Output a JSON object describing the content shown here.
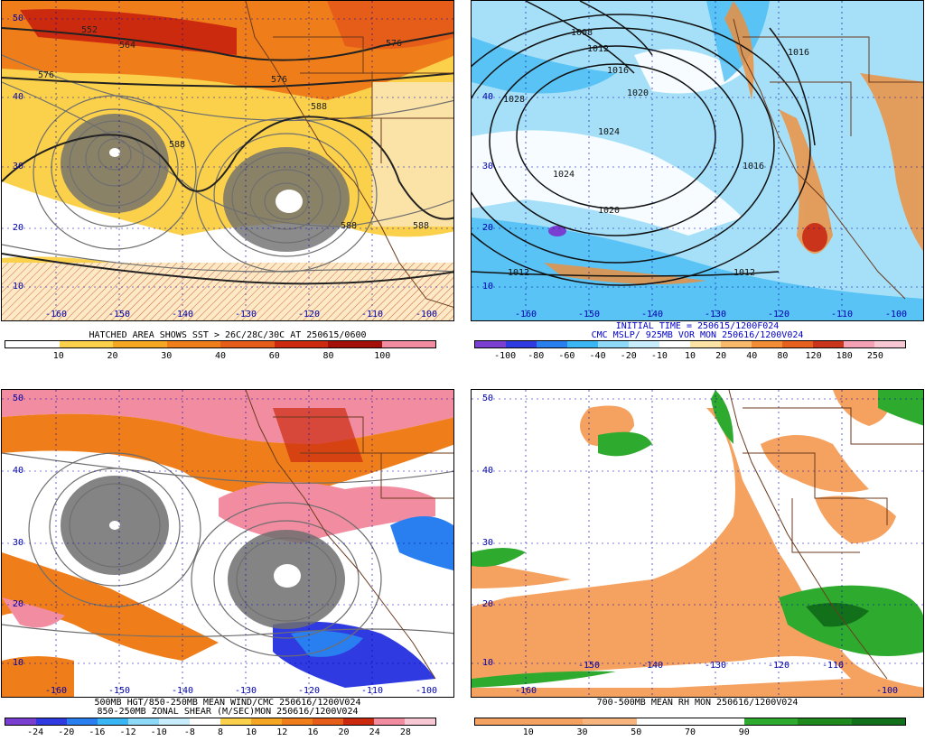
{
  "panels": {
    "tl": {
      "caption1": "HATCHED AREA SHOWS SST > 26C/28C/30C AT 250615/0600",
      "colorbar": {
        "labels": [
          "10",
          "20",
          "30",
          "40",
          "60",
          "80",
          "100"
        ],
        "colors": [
          "#ffffff",
          "#fbd14b",
          "#f5a623",
          "#ef7e1a",
          "#e65c19",
          "#cc2a0e",
          "#a3100a",
          "#f28ca0"
        ]
      },
      "lat_labels": [
        "50",
        "40",
        "30",
        "20",
        "10"
      ],
      "lon_labels": [
        "-160",
        "-150",
        "-140",
        "-130",
        "-120",
        "-110",
        "-100"
      ],
      "contour_labels": [
        "552",
        "564",
        "576",
        "576",
        "576",
        "588",
        "588",
        "588",
        "588"
      ]
    },
    "tr": {
      "caption1": "INITIAL TIME = 250615/1200F024",
      "caption2": "CMC MSLP/ 925MB VOR MON 250616/1200V024",
      "colorbar": {
        "labels": [
          "-100",
          "-80",
          "-60",
          "-40",
          "-20",
          "-10",
          "10",
          "20",
          "40",
          "80",
          "120",
          "180",
          "250"
        ],
        "colors": [
          "#7a3fd1",
          "#2f3be0",
          "#2a7ff0",
          "#39b6f3",
          "#8ed9f7",
          "#c7ecfb",
          "#ffffff",
          "#fde2a6",
          "#f8b96a",
          "#f28d36",
          "#e8601d",
          "#c9341a",
          "#f6a0b6",
          "#f7c8d3"
        ]
      },
      "lat_labels": [
        "40",
        "30",
        "20",
        "10"
      ],
      "lon_labels": [
        "-160",
        "-150",
        "-140",
        "-130",
        "-120",
        "-110",
        "-100"
      ],
      "contour_labels": [
        "1008",
        "1012",
        "1016",
        "1020",
        "1024",
        "1028",
        "1024",
        "1020",
        "1016",
        "1012",
        "1016",
        "1012"
      ]
    },
    "bl": {
      "caption1": "500MB HGT/850-250MB MEAN WIND/CMC 250616/1200V024",
      "caption2": "850-250MB ZONAL SHEAR (M/SEC)MON 250616/1200V024",
      "colorbar": {
        "labels": [
          "-24",
          "-20",
          "-16",
          "-12",
          "-10",
          "-8",
          "8",
          "10",
          "12",
          "16",
          "20",
          "24",
          "28"
        ],
        "colors": [
          "#7a3fd1",
          "#2f3be0",
          "#2a7ff0",
          "#39b6f3",
          "#8ed9f7",
          "#c7ecfb",
          "#ffffff",
          "#fbd14b",
          "#f5a623",
          "#ef7e1a",
          "#e65c19",
          "#cc2a0e",
          "#f28ca0",
          "#f7c8d3"
        ]
      },
      "lat_labels": [
        "50",
        "40",
        "30",
        "20",
        "10"
      ],
      "lon_labels": [
        "-160",
        "-150",
        "-140",
        "-130",
        "-120",
        "-110",
        "-100"
      ]
    },
    "br": {
      "caption1": "700-500MB MEAN RH MON 250616/1200V024",
      "colorbar": {
        "labels": [
          "10",
          "30",
          "50",
          "70",
          "90"
        ],
        "colors": [
          "#f5a15f",
          "#f5a15f",
          "#f7b47c",
          "#ffffff",
          "#ffffff",
          "#2eaa2e",
          "#1e8a1e",
          "#13701a"
        ]
      },
      "lat_labels": [
        "50",
        "40",
        "30",
        "20",
        "10"
      ],
      "lon_labels": [
        "-150",
        "-140",
        "-130",
        "-120",
        "-110",
        "-100",
        "-160"
      ]
    }
  }
}
